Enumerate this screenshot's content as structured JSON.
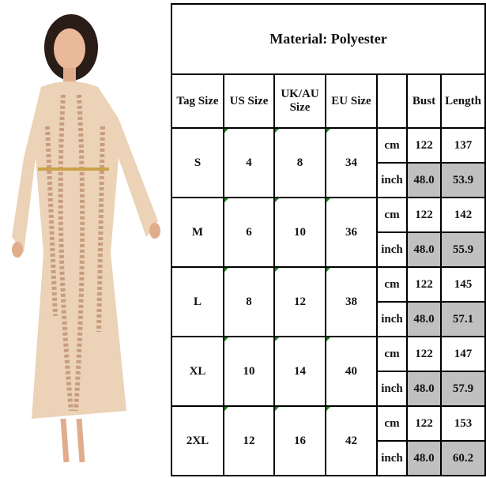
{
  "title": "Material: Polyester",
  "headers": [
    "Tag Size",
    "US Size",
    "UK/AU Size",
    "EU Size",
    "",
    "Bust",
    "Length"
  ],
  "units": [
    "cm",
    "inch"
  ],
  "rows": [
    {
      "tag": "S",
      "us": "4",
      "uk": "8",
      "eu": "34",
      "cm": [
        "122",
        "137"
      ],
      "inch": [
        "48.0",
        "53.9"
      ]
    },
    {
      "tag": "M",
      "us": "6",
      "uk": "10",
      "eu": "36",
      "cm": [
        "122",
        "142"
      ],
      "inch": [
        "48.0",
        "55.9"
      ]
    },
    {
      "tag": "L",
      "us": "8",
      "uk": "12",
      "eu": "38",
      "cm": [
        "122",
        "145"
      ],
      "inch": [
        "48.0",
        "57.1"
      ]
    },
    {
      "tag": "XL",
      "us": "10",
      "uk": "14",
      "eu": "40",
      "cm": [
        "122",
        "147"
      ],
      "inch": [
        "48.0",
        "57.9"
      ]
    },
    {
      "tag": "2XL",
      "us": "12",
      "uk": "16",
      "eu": "42",
      "cm": [
        "122",
        "153"
      ],
      "inch": [
        "48.0",
        "60.2"
      ]
    }
  ],
  "colors": {
    "highlight": "#c0c0c0",
    "dress": "#e8cdb0",
    "sequins": "#b07a5a"
  }
}
